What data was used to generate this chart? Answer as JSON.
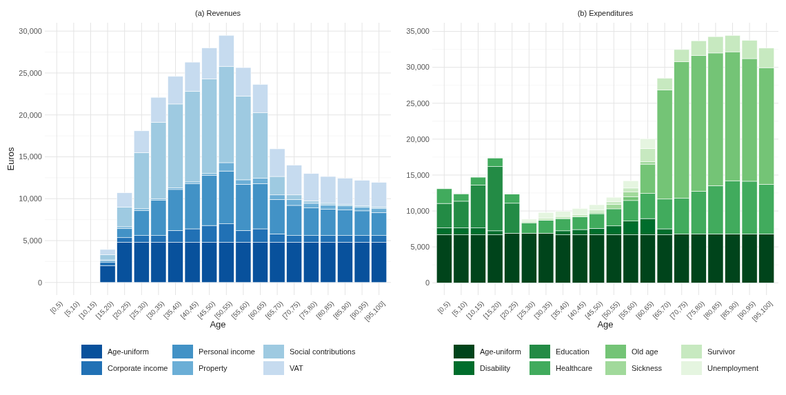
{
  "chart_data": [
    {
      "type": "bar",
      "title": "(a) Revenues",
      "xlabel": "Age",
      "ylabel": "Euros",
      "stacked": true,
      "grid": true,
      "legend": "bottom",
      "categories": [
        "[0,5)",
        "[5,10)",
        "[10,15)",
        "[15,20)",
        "[20,25)",
        "[25,30)",
        "[30,35)",
        "[35,40)",
        "[40,45)",
        "[45,50)",
        "[50,55)",
        "[55,60)",
        "[60,65)",
        "[65,70)",
        "[70,75)",
        "[75,80)",
        "[80,85)",
        "[85,90)",
        "[90,95)",
        "[95,100]"
      ],
      "ylim": [
        -1500,
        31000
      ],
      "yticks": [
        {
          "value": 0,
          "label": "0"
        },
        {
          "value": 5000,
          "label": "5,000"
        },
        {
          "value": 10000,
          "label": "10,000"
        },
        {
          "value": 15000,
          "label": "15,000"
        },
        {
          "value": 20000,
          "label": "20,000"
        },
        {
          "value": 25000,
          "label": "25,000"
        },
        {
          "value": 30000,
          "label": "30,000"
        }
      ],
      "series": [
        {
          "name": "Age-uniform",
          "color": "#08519c",
          "values": [
            null,
            null,
            null,
            2000,
            4800,
            4800,
            4800,
            4800,
            4800,
            4800,
            4800,
            4800,
            4800,
            4800,
            4800,
            4800,
            4800,
            4800,
            4800,
            4800
          ]
        },
        {
          "name": "Corporate income",
          "color": "#2171b5",
          "values": [
            null,
            null,
            null,
            400,
            550,
            800,
            800,
            1400,
            1600,
            2000,
            2200,
            1400,
            1600,
            1000,
            800,
            800,
            800,
            800,
            800,
            800
          ]
        },
        {
          "name": "Personal income",
          "color": "#4292c6",
          "values": [
            null,
            null,
            null,
            200,
            1100,
            3000,
            4200,
            4900,
            5400,
            6000,
            6300,
            5500,
            5400,
            4100,
            3600,
            3300,
            3150,
            3050,
            2950,
            2750
          ]
        },
        {
          "name": "Property",
          "color": "#6baed6",
          "values": [
            null,
            null,
            null,
            100,
            200,
            200,
            200,
            200,
            200,
            200,
            1000,
            550,
            650,
            550,
            700,
            550,
            500,
            500,
            450,
            500
          ]
        },
        {
          "name": "Social contributions",
          "color": "#9ecae1",
          "values": [
            null,
            null,
            null,
            600,
            2350,
            6700,
            9100,
            10000,
            10800,
            11300,
            11500,
            10000,
            7800,
            2200,
            550,
            300,
            200,
            150,
            150,
            150
          ]
        },
        {
          "name": "VAT",
          "color": "#c6dbef",
          "values": [
            null,
            null,
            null,
            640,
            1700,
            2600,
            3000,
            3300,
            3500,
            3700,
            3700,
            3400,
            3400,
            3300,
            3550,
            3250,
            3200,
            3150,
            3050,
            2950
          ]
        }
      ]
    },
    {
      "type": "bar",
      "title": "(b) Expenditures",
      "xlabel": "Age",
      "stacked": true,
      "grid": true,
      "legend": "bottom",
      "categories": [
        "[0,5)",
        "[5,10)",
        "[10,15)",
        "[15,20)",
        "[20,25)",
        "[25,30)",
        "[30,35)",
        "[35,40)",
        "[40,45)",
        "[45,50)",
        "[50,55)",
        "[55,60)",
        "[60,65)",
        "[65,70)",
        "[70,75)",
        "[75,80)",
        "[80,85)",
        "[85,90)",
        "[90,95)",
        "[95,100]"
      ],
      "ylim": [
        -1700,
        36200
      ],
      "yticks": [
        {
          "value": 0,
          "label": "0"
        },
        {
          "value": 5000,
          "label": "5,000"
        },
        {
          "value": 10000,
          "label": "10,000"
        },
        {
          "value": 15000,
          "label": "15,000"
        },
        {
          "value": 20000,
          "label": "20,000"
        },
        {
          "value": 25000,
          "label": "25,000"
        },
        {
          "value": 30000,
          "label": "30,000"
        },
        {
          "value": 35000,
          "label": "35,000"
        }
      ],
      "series": [
        {
          "name": "Age-uniform",
          "color": "#00441b",
          "values": [
            6700,
            6700,
            6700,
            6700,
            6900,
            6900,
            6900,
            6700,
            6700,
            6700,
            6700,
            6700,
            6700,
            6700,
            6800,
            6800,
            6800,
            6800,
            6800,
            6800
          ]
        },
        {
          "name": "Disability",
          "color": "#006d2c",
          "values": [
            950,
            950,
            950,
            540,
            0,
            0,
            0,
            540,
            710,
            880,
            1220,
            1900,
            2240,
            810,
            0,
            0,
            0,
            0,
            0,
            0
          ]
        },
        {
          "name": "Education",
          "color": "#238b45",
          "values": [
            3400,
            3710,
            5960,
            8940,
            4180,
            0,
            0,
            0,
            0,
            0,
            0,
            0,
            0,
            0,
            0,
            0,
            0,
            0,
            0,
            0
          ]
        },
        {
          "name": "Healthcare",
          "color": "#41ab5d",
          "values": [
            2040,
            1020,
            1090,
            1190,
            1260,
            1460,
            1800,
            1700,
            1800,
            2040,
            2380,
            2860,
            3500,
            4150,
            4960,
            5950,
            6730,
            7410,
            7340,
            6900
          ]
        },
        {
          "name": "Old age",
          "color": "#74c476",
          "values": [
            0,
            0,
            0,
            0,
            0,
            0,
            0,
            0,
            0,
            0,
            0,
            540,
            4080,
            15200,
            19010,
            18900,
            18460,
            17950,
            17070,
            16250
          ]
        },
        {
          "name": "Sickness",
          "color": "#a1d99b",
          "values": [
            0,
            0,
            0,
            0,
            0,
            0,
            0,
            0,
            0,
            200,
            610,
            680,
            340,
            0,
            0,
            0,
            0,
            0,
            0,
            0
          ]
        },
        {
          "name": "Survivor",
          "color": "#c7e9c0",
          "values": [
            0,
            0,
            0,
            0,
            0,
            200,
            300,
            300,
            300,
            300,
            400,
            510,
            1840,
            1630,
            1700,
            2040,
            2280,
            2280,
            2550,
            2720
          ]
        },
        {
          "name": "Unemployment",
          "color": "#e5f5e0",
          "values": [
            0,
            0,
            0,
            0,
            0,
            300,
            800,
            700,
            850,
            750,
            600,
            1020,
            1360,
            0,
            0,
            0,
            0,
            0,
            0,
            0
          ]
        }
      ]
    }
  ]
}
